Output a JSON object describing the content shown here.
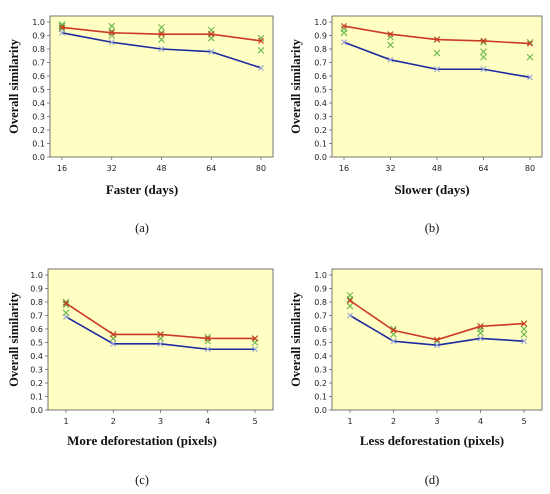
{
  "colors": {
    "plot_bg": "#ffffc4",
    "upper_line": "#cc3a26",
    "lower_line": "#1e2aa0",
    "scatter": "#6ab84e",
    "lower_marker": "#9aa6d6"
  },
  "chart_data": [
    {
      "type": "line",
      "caption": "(a)",
      "xlabel": "Faster (days)",
      "ylabel": "Overall similarity",
      "x": [
        16,
        32,
        48,
        64,
        80
      ],
      "ylim": [
        0,
        1.0
      ],
      "yticks": [
        "0.0",
        "0.1",
        "0.2",
        "0.3",
        "0.4",
        "0.5",
        "0.6",
        "0.7",
        "0.8",
        "0.9",
        "1.0"
      ],
      "series": [
        {
          "role": "upper",
          "values": [
            0.96,
            0.92,
            0.91,
            0.91,
            0.86
          ]
        },
        {
          "role": "lower",
          "values": [
            0.92,
            0.85,
            0.8,
            0.78,
            0.66
          ]
        }
      ],
      "scatter": [
        [
          16,
          0.98
        ],
        [
          16,
          0.97
        ],
        [
          16,
          0.95
        ],
        [
          32,
          0.97
        ],
        [
          32,
          0.93
        ],
        [
          32,
          0.9
        ],
        [
          48,
          0.96
        ],
        [
          48,
          0.92
        ],
        [
          48,
          0.87
        ],
        [
          64,
          0.94
        ],
        [
          64,
          0.91
        ],
        [
          64,
          0.88
        ],
        [
          80,
          0.88
        ],
        [
          80,
          0.79
        ]
      ]
    },
    {
      "type": "line",
      "caption": "(b)",
      "xlabel": "Slower (days)",
      "ylabel": "Overall similarity",
      "x": [
        16,
        32,
        48,
        64,
        80
      ],
      "ylim": [
        0,
        1.0
      ],
      "yticks": [
        "0.0",
        "0.1",
        "0.2",
        "0.3",
        "0.4",
        "0.5",
        "0.6",
        "0.7",
        "0.8",
        "0.9",
        "1.0"
      ],
      "series": [
        {
          "role": "upper",
          "values": [
            0.97,
            0.91,
            0.87,
            0.86,
            0.84
          ]
        },
        {
          "role": "lower",
          "values": [
            0.85,
            0.72,
            0.65,
            0.65,
            0.59
          ]
        }
      ],
      "scatter": [
        [
          16,
          0.95
        ],
        [
          16,
          0.92
        ],
        [
          32,
          0.89
        ],
        [
          32,
          0.83
        ],
        [
          48,
          0.87
        ],
        [
          48,
          0.77
        ],
        [
          64,
          0.85
        ],
        [
          64,
          0.78
        ],
        [
          64,
          0.74
        ],
        [
          80,
          0.85
        ],
        [
          80,
          0.74
        ]
      ]
    },
    {
      "type": "line",
      "caption": "(c)",
      "xlabel": "More deforestation (pixels)",
      "ylabel": "Overall similarity",
      "x": [
        1,
        2,
        3,
        4,
        5
      ],
      "ylim": [
        0,
        1.0
      ],
      "yticks": [
        "0.0",
        "0.1",
        "0.2",
        "0.3",
        "0.4",
        "0.5",
        "0.6",
        "0.7",
        "0.8",
        "0.9",
        "1.0"
      ],
      "series": [
        {
          "role": "upper",
          "values": [
            0.79,
            0.56,
            0.56,
            0.53,
            0.53
          ]
        },
        {
          "role": "lower",
          "values": [
            0.69,
            0.49,
            0.49,
            0.45,
            0.45
          ]
        }
      ],
      "scatter": [
        [
          1,
          0.8
        ],
        [
          1,
          0.78
        ],
        [
          1,
          0.72
        ],
        [
          2,
          0.56
        ],
        [
          2,
          0.53
        ],
        [
          3,
          0.56
        ],
        [
          3,
          0.53
        ],
        [
          4,
          0.54
        ],
        [
          4,
          0.51
        ],
        [
          5,
          0.53
        ],
        [
          5,
          0.5
        ]
      ]
    },
    {
      "type": "line",
      "caption": "(d)",
      "xlabel": "Less deforestation (pixels)",
      "ylabel": "Overall similarity",
      "x": [
        1,
        2,
        3,
        4,
        5
      ],
      "ylim": [
        0,
        1.0
      ],
      "yticks": [
        "0.0",
        "0.1",
        "0.2",
        "0.3",
        "0.4",
        "0.5",
        "0.6",
        "0.7",
        "0.8",
        "0.9",
        "1.0"
      ],
      "series": [
        {
          "role": "upper",
          "values": [
            0.81,
            0.59,
            0.52,
            0.62,
            0.64
          ]
        },
        {
          "role": "lower",
          "values": [
            0.7,
            0.51,
            0.48,
            0.53,
            0.51
          ]
        }
      ],
      "scatter": [
        [
          1,
          0.85
        ],
        [
          1,
          0.82
        ],
        [
          1,
          0.77
        ],
        [
          2,
          0.6
        ],
        [
          2,
          0.56
        ],
        [
          3,
          0.51
        ],
        [
          4,
          0.62
        ],
        [
          4,
          0.6
        ],
        [
          4,
          0.57
        ],
        [
          5,
          0.64
        ],
        [
          5,
          0.6
        ],
        [
          5,
          0.56
        ]
      ]
    }
  ]
}
